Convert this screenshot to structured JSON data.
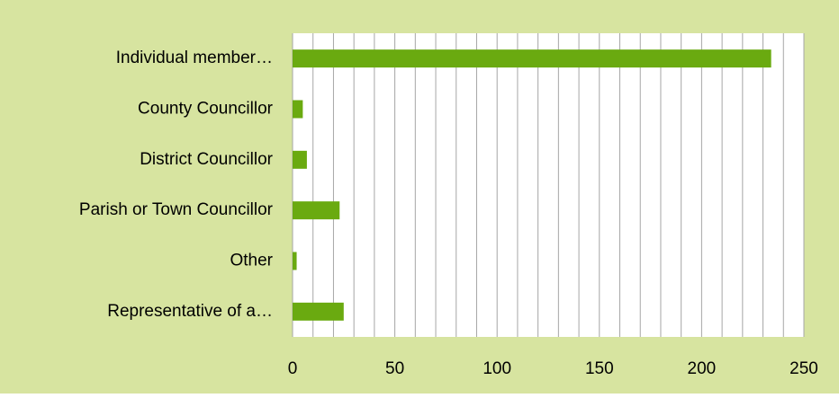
{
  "chart_data": {
    "type": "bar",
    "orientation": "horizontal",
    "categories": [
      "Individual member…",
      "County Councillor",
      "District Councillor",
      "Parish or Town Councillor",
      "Other",
      "Representative of a…"
    ],
    "values": [
      234,
      5,
      7,
      23,
      2,
      25
    ],
    "color": "#6aaa10",
    "xlim": [
      0,
      250
    ],
    "xticks": [
      0,
      50,
      100,
      150,
      200,
      250
    ],
    "minor_xticks": [
      10,
      20,
      30,
      40,
      60,
      70,
      80,
      90,
      110,
      120,
      130,
      140,
      160,
      170,
      180,
      190,
      210,
      220,
      230,
      240
    ],
    "grid": true
  }
}
